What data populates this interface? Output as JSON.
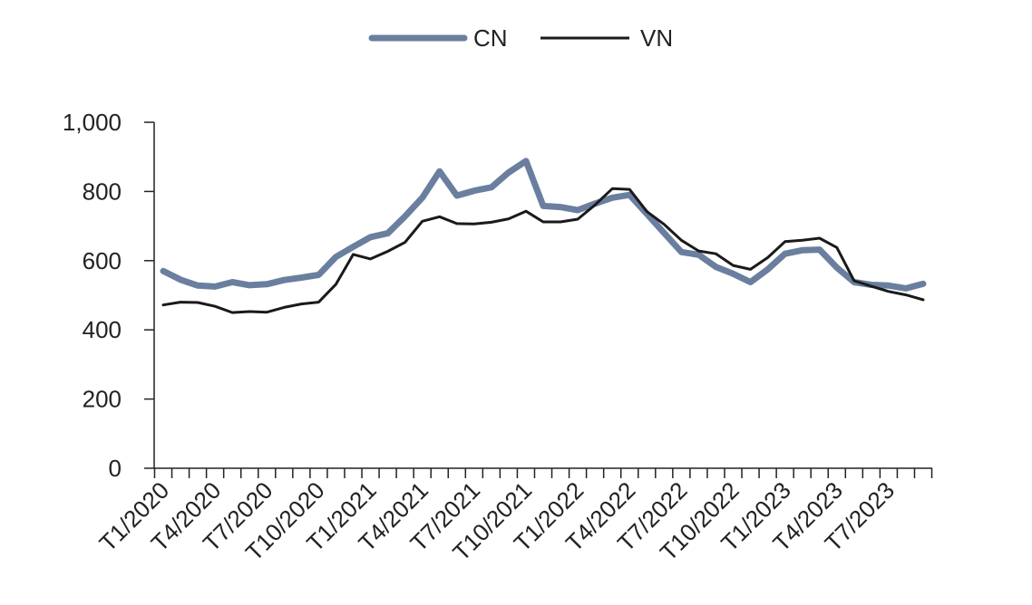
{
  "chart_data": {
    "type": "line",
    "title": "",
    "xlabel": "",
    "ylabel": "",
    "ylim": [
      0,
      1000
    ],
    "y_ticks": [
      0,
      200,
      400,
      600,
      800,
      1000
    ],
    "y_tick_labels": [
      "0",
      "200",
      "400",
      "600",
      "800",
      "1,000"
    ],
    "legend_position": "top-center",
    "grid": false,
    "x": [
      "T1/2020",
      "T2/2020",
      "T3/2020",
      "T4/2020",
      "T5/2020",
      "T6/2020",
      "T7/2020",
      "T8/2020",
      "T9/2020",
      "T10/2020",
      "T11/2020",
      "T12/2020",
      "T1/2021",
      "T2/2021",
      "T3/2021",
      "T4/2021",
      "T5/2021",
      "T6/2021",
      "T7/2021",
      "T8/2021",
      "T9/2021",
      "T10/2021",
      "T11/2021",
      "T12/2021",
      "T1/2022",
      "T2/2022",
      "T3/2022",
      "T4/2022",
      "T5/2022",
      "T6/2022",
      "T7/2022",
      "T8/2022",
      "T9/2022",
      "T10/2022",
      "T11/2022",
      "T12/2022",
      "T1/2023",
      "T2/2023",
      "T3/2023",
      "T4/2023",
      "T5/2023",
      "T6/2023",
      "T7/2023",
      "T8/2023",
      "T9/2023"
    ],
    "x_tick_labels": [
      {
        "index": 0,
        "label": "T1/2020"
      },
      {
        "index": 3,
        "label": "T4/2020"
      },
      {
        "index": 6,
        "label": "T7/2020"
      },
      {
        "index": 9,
        "label": "T10/2020"
      },
      {
        "index": 12,
        "label": "T1/2021"
      },
      {
        "index": 15,
        "label": "T4/2021"
      },
      {
        "index": 18,
        "label": "T7/2021"
      },
      {
        "index": 21,
        "label": "T10/2021"
      },
      {
        "index": 24,
        "label": "T1/2022"
      },
      {
        "index": 27,
        "label": "T4/2022"
      },
      {
        "index": 30,
        "label": "T7/2022"
      },
      {
        "index": 33,
        "label": "T10/2022"
      },
      {
        "index": 36,
        "label": "T1/2023"
      },
      {
        "index": 39,
        "label": "T4/2023"
      },
      {
        "index": 42,
        "label": "T7/2023"
      }
    ],
    "series": [
      {
        "name": "CN",
        "color": "#6a7f9f",
        "values": [
          570,
          545,
          528,
          525,
          538,
          529,
          532,
          544,
          551,
          559,
          611,
          640,
          668,
          679,
          728,
          782,
          858,
          788,
          802,
          812,
          855,
          888,
          758,
          755,
          746,
          765,
          782,
          790,
          735,
          680,
          625,
          617,
          582,
          562,
          538,
          575,
          620,
          630,
          632,
          580,
          538,
          530,
          528,
          520,
          533
        ]
      },
      {
        "name": "VN",
        "color": "#1a1a1a",
        "values": [
          472,
          480,
          479,
          468,
          450,
          453,
          451,
          465,
          475,
          480,
          532,
          618,
          605,
          627,
          653,
          714,
          727,
          707,
          706,
          711,
          721,
          743,
          712,
          712,
          720,
          761,
          808,
          806,
          742,
          705,
          659,
          628,
          620,
          586,
          575,
          609,
          655,
          659,
          665,
          638,
          542,
          526,
          511,
          501,
          487
        ]
      }
    ]
  }
}
